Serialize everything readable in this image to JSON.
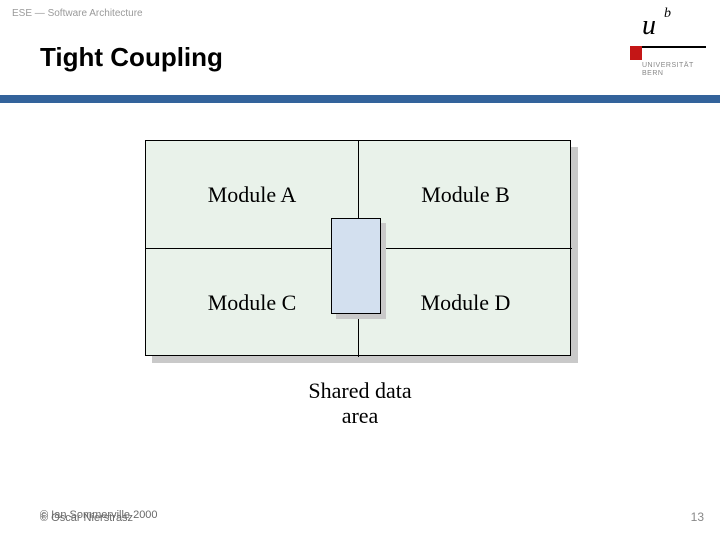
{
  "breadcrumb": "ESE — Software Architecture",
  "title": "Tight Coupling",
  "logo": {
    "u": "u",
    "b": "b",
    "uni_line1": "UNIVERSITÄT",
    "uni_line2": "BERN",
    "red_color": "#c41616"
  },
  "theme": {
    "bar_color": "#33639b",
    "module_fill": "#e9f2ea",
    "shared_fill": "#d3e0ef",
    "shadow_color": "#c9c9c9",
    "border_color": "#000000",
    "background": "#ffffff"
  },
  "figure": {
    "type": "diagram",
    "grid": {
      "rows": 2,
      "cols": 2
    },
    "modules": {
      "a": "Module A",
      "b": "Module B",
      "c": "Module C",
      "d": "Module D"
    },
    "shared_box_label": "",
    "caption_line1": "Shared data",
    "caption_line2": "area",
    "module_font_family": "Times New Roman",
    "module_font_size_pt": 16
  },
  "footer": {
    "copyright_line1": "© Ian Sommerville 2000",
    "copyright_line2": "© Oscar Nierstrasz",
    "page_number": "13"
  }
}
